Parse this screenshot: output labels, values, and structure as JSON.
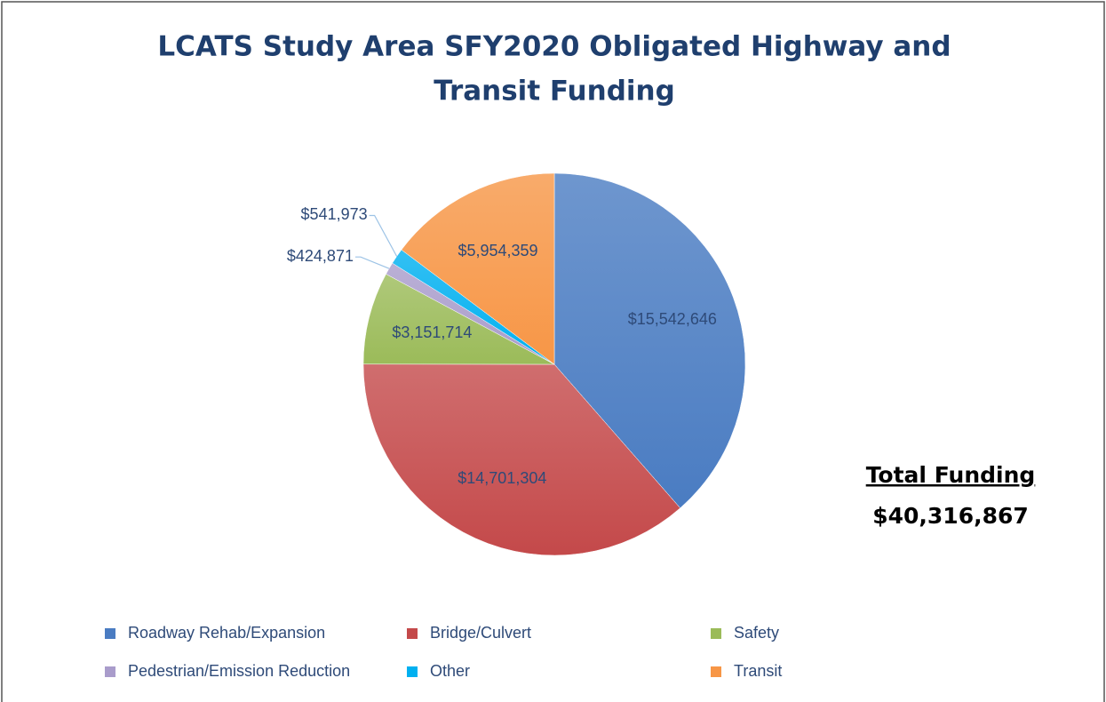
{
  "chart_data": {
    "type": "pie",
    "title": [
      "LCATS Study Area SFY2020 Obligated Highway and",
      "Transit Funding"
    ],
    "categories": [
      "Roadway Rehab/Expansion",
      "Bridge/Culvert",
      "Safety",
      "Pedestrian/Emission Reduction",
      "Other",
      "Transit"
    ],
    "values": [
      15542646,
      14701304,
      3151714,
      424871,
      541973,
      5954359
    ],
    "value_labels": [
      "$15,542,646",
      "$14,701,304",
      "$3,151,714",
      "$424,871",
      "$541,973",
      "$5,954,359"
    ],
    "colors": [
      "#4a7cc2",
      "#c4494a",
      "#9bbb59",
      "#a99ccb",
      "#00b0f0",
      "#f79646"
    ],
    "annotations": [
      "Total Funding",
      "$40,316,867"
    ],
    "legend": "bottom"
  }
}
